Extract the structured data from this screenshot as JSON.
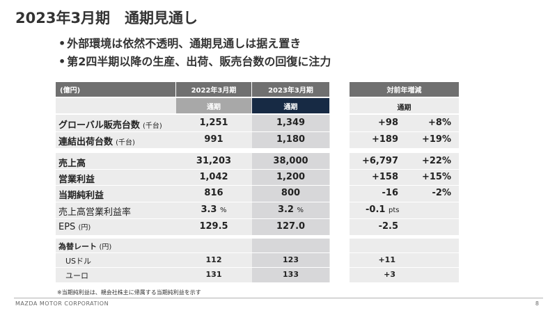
{
  "title": "2023年3月期　通期見通し",
  "bullets": [
    "外部環境は依然不透明、通期見通しは据え置き",
    "第2四半期以降の生産、出荷、販売台数の回復に注力"
  ],
  "table": {
    "unit_header": "(億円)",
    "col_fy2022": "2022年3月期",
    "col_fy2023": "2023年3月期",
    "col_change": "対前年増減",
    "sub_full_year_1": "通期",
    "sub_full_year_2": "通期",
    "sub_full_year_3": "通期",
    "rows": {
      "global_sales": {
        "label": "グローバル販売台数",
        "unit": "(千台)",
        "v2022": "1,251",
        "v2023": "1,349",
        "diff": "+98",
        "pct": "+8%"
      },
      "consolidated_shipments": {
        "label": "連結出荷台数",
        "unit": "(千台)",
        "v2022": "991",
        "v2023": "1,180",
        "diff": "+189",
        "pct": "+19%"
      },
      "revenue": {
        "label": "売上高",
        "v2022": "31,203",
        "v2023": "38,000",
        "diff": "+6,797",
        "pct": "+22%"
      },
      "operating_income": {
        "label": "営業利益",
        "v2022": "1,042",
        "v2023": "1,200",
        "diff": "+158",
        "pct": "+15%"
      },
      "net_income": {
        "label": "当期純利益",
        "v2022": "816",
        "v2023": "800",
        "diff": "-16",
        "pct": "-2%"
      },
      "op_margin": {
        "label": "売上高営業利益率",
        "v2022": "3.3",
        "v2022_unit": "%",
        "v2023": "3.2",
        "v2023_unit": "%",
        "diff": "-0.1",
        "diff_unit": "pts"
      },
      "eps": {
        "label": "EPS",
        "unit": "(円)",
        "v2022": "129.5",
        "v2023": "127.0",
        "diff": "-2.5"
      }
    },
    "fx": {
      "label": "為替レート",
      "unit": "(円)",
      "usd": {
        "label": "USドル",
        "v2022": "112",
        "v2023": "123",
        "diff": "+11"
      },
      "eur": {
        "label": "ユーロ",
        "v2022": "131",
        "v2023": "133",
        "diff": "+3"
      }
    }
  },
  "note": "※当期純利益は、親会社株主に帰属する当期純利益を示す",
  "footer": "MAZDA MOTOR CORPORATION",
  "page_number": "8"
}
